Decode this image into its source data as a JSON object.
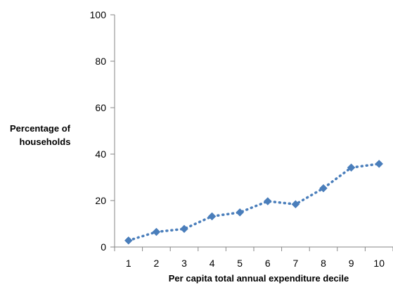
{
  "chart_data": {
    "type": "line",
    "title": "",
    "xlabel": "Per capita  total annual expenditure decile",
    "ylabel_lines": [
      "Percentage of",
      "households"
    ],
    "categories": [
      "1",
      "2",
      "3",
      "4",
      "5",
      "6",
      "7",
      "8",
      "9",
      "10"
    ],
    "series": [
      {
        "values": [
          2.8,
          6.5,
          7.8,
          13.2,
          14.9,
          19.7,
          18.4,
          25.3,
          34.2,
          35.8
        ],
        "color": "#4a7ebb",
        "marker": "diamond",
        "line_style": "dotted"
      }
    ],
    "ylim": [
      0,
      100
    ],
    "yticks": [
      0,
      20,
      40,
      60,
      80,
      100
    ],
    "grid": false,
    "legend": "none"
  }
}
